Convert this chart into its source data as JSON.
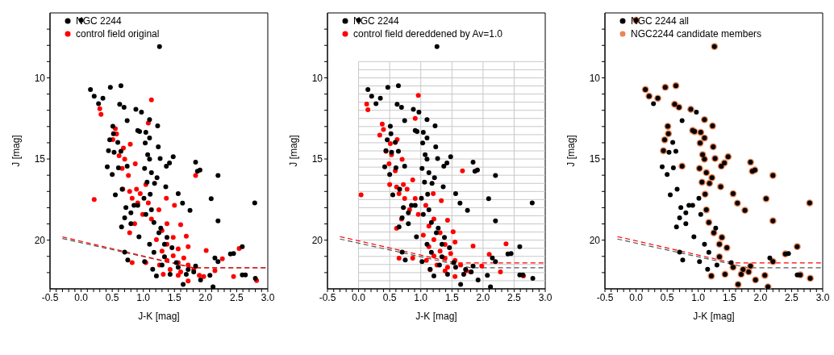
{
  "chart_data": [
    {
      "type": "scatter",
      "xlabel": "J-K [mag]",
      "ylabel": "J [mag]",
      "legend": "top left",
      "marker": "circle",
      "xlim": [
        -0.5,
        3.0
      ],
      "ylim": [
        23,
        6
      ],
      "xticks": [
        -0.5,
        {
          "value": -0.4,
          "label": null
        },
        {
          "value": -0.3,
          "label": null
        },
        {
          "value": -0.2,
          "label": null
        },
        {
          "value": -0.1,
          "label": null
        },
        {
          "value": 0,
          "label": "0.0"
        },
        {
          "value": 0.1,
          "label": null
        },
        {
          "value": 0.2,
          "label": null
        },
        {
          "value": 0.3,
          "label": null
        },
        {
          "value": 0.4,
          "label": null
        },
        0.5,
        {
          "value": 0.6,
          "label": null
        },
        {
          "value": 0.7,
          "label": null
        },
        {
          "value": 0.8,
          "label": null
        },
        {
          "value": 0.9,
          "label": null
        },
        {
          "value": 1,
          "label": "1.0"
        },
        {
          "value": 1.1,
          "label": null
        },
        {
          "value": 1.2,
          "label": null
        },
        {
          "value": 1.3,
          "label": null
        },
        {
          "value": 1.4,
          "label": null
        },
        1.5,
        {
          "value": 1.6,
          "label": null
        },
        {
          "value": 1.7,
          "label": null
        },
        {
          "value": 1.8,
          "label": null
        },
        {
          "value": 1.9,
          "label": null
        },
        {
          "value": 2,
          "label": "2.0"
        },
        {
          "value": 2.1,
          "label": null
        },
        {
          "value": 2.2,
          "label": null
        },
        {
          "value": 2.3,
          "label": null
        },
        {
          "value": 2.4,
          "label": null
        },
        2.5,
        {
          "value": 2.6,
          "label": null
        },
        {
          "value": 2.7,
          "label": null
        },
        {
          "value": 2.8,
          "label": null
        },
        {
          "value": 2.9,
          "label": null
        },
        {
          "value": 3,
          "label": "3.0"
        }
      ],
      "yticks": [
        {
          "value": 7,
          "label": null
        },
        {
          "value": 8,
          "label": null
        },
        {
          "value": 9,
          "label": null
        },
        10,
        {
          "value": 11,
          "label": null
        },
        {
          "value": 12,
          "label": null
        },
        {
          "value": 13,
          "label": null
        },
        {
          "value": 14,
          "label": null
        },
        15,
        {
          "value": 16,
          "label": null
        },
        {
          "value": 17,
          "label": null
        },
        {
          "value": 18,
          "label": null
        },
        {
          "value": 19,
          "label": null
        },
        20,
        {
          "value": 21,
          "label": null
        },
        {
          "value": 22,
          "label": null
        }
      ],
      "series": [
        {
          "name": "NGC 2244",
          "color": "#000000",
          "x": [
            0.0,
            1.26,
            0.15,
            0.21,
            0.28,
            0.35,
            0.47,
            0.64,
            0.62,
            0.69,
            0.88,
            0.97,
            0.74,
            1.1,
            1.23,
            0.51,
            0.52,
            0.91,
            0.94,
            1.04,
            1.1,
            0.46,
            0.59,
            1.03,
            0.44,
            0.53,
            0.64,
            1.24,
            1.07,
            1.1,
            1.27,
            1.48,
            1.37,
            1.42,
            0.42,
            0.5,
            0.6,
            0.74,
            1.13,
            1.22,
            1.18,
            1.84,
            1.87,
            1.91,
            2.2,
            1.36,
            1.56,
            0.66,
            0.55,
            2.09,
            1.63,
            2.79,
            1.75,
            2.2,
            0.65,
            0.7,
            0.8,
            0.91,
            1.01,
            1.11,
            1.04,
            1.17,
            0.8,
            0.93,
            1.28,
            1.38,
            1.1,
            1.17,
            1.46,
            1.34,
            0.7,
            0.75,
            1.02,
            1.15,
            1.21,
            1.56,
            1.69,
            1.84,
            1.64,
            1.92,
            2.12,
            2.2,
            2.15,
            2.07,
            2.4,
            2.45,
            2.59,
            2.59,
            2.64,
            2.8,
            1.81,
            1.72,
            1.53,
            1.3,
            1.43,
            1.34,
            1.25,
            1.13,
            1.06,
            1.02,
            0.85,
            0.72
          ],
          "values": [
            6.45,
            8.07,
            10.72,
            11.13,
            11.59,
            11.26,
            10.58,
            10.48,
            11.63,
            11.81,
            11.94,
            12.12,
            12.63,
            12.58,
            12.96,
            12.99,
            13.44,
            13.24,
            13.31,
            13.36,
            13.71,
            13.82,
            13.98,
            14.02,
            14.49,
            14.59,
            14.53,
            14.25,
            14.73,
            15.01,
            14.97,
            14.86,
            15.44,
            15.24,
            15.48,
            15.95,
            15.54,
            15.44,
            15.84,
            16.15,
            16.5,
            15.2,
            15.75,
            15.68,
            16.01,
            16.71,
            17.14,
            16.86,
            17.21,
            17.45,
            17.72,
            17.71,
            18.16,
            18.81,
            19.19,
            18.63,
            18.31,
            17.85,
            17.42,
            17.17,
            18.41,
            18.91,
            18.98,
            19.8,
            19.26,
            19.83,
            20.25,
            20.75,
            20.47,
            21.03,
            20.74,
            21.22,
            21.32,
            21.79,
            22.21,
            21.67,
            22.1,
            21.6,
            22.73,
            22.45,
            22.88,
            21.32,
            21.1,
            22.17,
            20.85,
            20.82,
            20.4,
            22.14,
            22.14,
            22.35,
            21.95,
            21.81,
            21.39,
            21.53,
            22.1,
            20.25,
            19.55,
            18.13,
            16.43,
            15.58,
            17.85,
            17.99
          ]
        },
        {
          "name": "control field original",
          "color": "#ff0000",
          "x": [
            1.13,
            0.3,
            0.32,
            1.08,
            0.55,
            0.57,
            0.51,
            0.79,
            0.68,
            0.61,
            0.7,
            0.87,
            0.66,
            0.76,
            1.84,
            0.21,
            0.67,
            0.78,
            0.89,
            0.95,
            1.04,
            0.82,
            0.91,
            1.08,
            1.37,
            1.5,
            1.25,
            0.99,
            1.13,
            0.86,
            0.78,
            1.38,
            1.6,
            1.3,
            1.48,
            1.69,
            1.21,
            1.38,
            1.56,
            1.72,
            1.3,
            1.48,
            1.65,
            1.38,
            1.56,
            1.72,
            1.26,
            1.04,
            0.82,
            1.43,
            1.6,
            1.81,
            1.32,
            1.56,
            1.72,
            2.01,
            2.27,
            2.15,
            1.9,
            2.45,
            2.54,
            2.82,
            1.97
          ],
          "values": [
            11.36,
            11.9,
            12.25,
            12.78,
            13.13,
            13.46,
            13.81,
            14.09,
            14.33,
            14.8,
            15.01,
            15.3,
            15.58,
            16.01,
            16.01,
            17.49,
            16.86,
            17.0,
            16.86,
            17.14,
            16.57,
            17.42,
            17.71,
            17.71,
            17.42,
            17.85,
            18.13,
            18.41,
            18.7,
            18.98,
            19.55,
            18.98,
            19.05,
            19.41,
            19.83,
            19.76,
            19.97,
            20.25,
            20.54,
            20.4,
            20.68,
            20.96,
            21.1,
            21.25,
            21.39,
            21.53,
            21.53,
            21.39,
            21.39,
            21.81,
            21.95,
            21.81,
            22.1,
            22.17,
            22.52,
            20.64,
            21.15,
            21.88,
            22.17,
            22.24,
            20.51,
            22.49,
            22.24
          ]
        },
        {
          "type": "line",
          "color": "#ff0000",
          "line_style": "dashed",
          "marker": "none",
          "x": [
            -0.3,
            1.8,
            3.0
          ],
          "values": [
            19.8,
            21.7,
            21.7
          ]
        },
        {
          "type": "line",
          "color": "#555555",
          "line_style": "dashed",
          "marker": "none",
          "x": [
            -0.3,
            1.8,
            3.0
          ],
          "values": [
            19.9,
            21.7,
            21.7
          ]
        }
      ]
    },
    {
      "type": "scatter",
      "xlabel": "J-K [mag]",
      "ylabel": "J [mag]",
      "legend": "top left",
      "marker": "circle",
      "xlim": [
        -0.5,
        3.0
      ],
      "ylim": [
        23,
        6
      ],
      "xticks": [
        -0.5,
        {
          "value": -0.4,
          "label": null
        },
        {
          "value": -0.3,
          "label": null
        },
        {
          "value": -0.2,
          "label": null
        },
        {
          "value": -0.1,
          "label": null
        },
        {
          "value": 0,
          "label": "0.0"
        },
        {
          "value": 0.1,
          "label": null
        },
        {
          "value": 0.2,
          "label": null
        },
        {
          "value": 0.3,
          "label": null
        },
        {
          "value": 0.4,
          "label": null
        },
        0.5,
        {
          "value": 0.6,
          "label": null
        },
        {
          "value": 0.7,
          "label": null
        },
        {
          "value": 0.8,
          "label": null
        },
        {
          "value": 0.9,
          "label": null
        },
        {
          "value": 1,
          "label": "1.0"
        },
        {
          "value": 1.1,
          "label": null
        },
        {
          "value": 1.2,
          "label": null
        },
        {
          "value": 1.3,
          "label": null
        },
        {
          "value": 1.4,
          "label": null
        },
        1.5,
        {
          "value": 1.6,
          "label": null
        },
        {
          "value": 1.7,
          "label": null
        },
        {
          "value": 1.8,
          "label": null
        },
        {
          "value": 1.9,
          "label": null
        },
        {
          "value": 2,
          "label": "2.0"
        },
        {
          "value": 2.1,
          "label": null
        },
        {
          "value": 2.2,
          "label": null
        },
        {
          "value": 2.3,
          "label": null
        },
        {
          "value": 2.4,
          "label": null
        },
        2.5,
        {
          "value": 2.6,
          "label": null
        },
        {
          "value": 2.7,
          "label": null
        },
        {
          "value": 2.8,
          "label": null
        },
        {
          "value": 2.9,
          "label": null
        },
        {
          "value": 3,
          "label": "3.0"
        }
      ],
      "yticks": [
        {
          "value": 7,
          "label": null
        },
        {
          "value": 8,
          "label": null
        },
        {
          "value": 9,
          "label": null
        },
        10,
        {
          "value": 11,
          "label": null
        },
        {
          "value": 12,
          "label": null
        },
        {
          "value": 13,
          "label": null
        },
        {
          "value": 14,
          "label": null
        },
        15,
        {
          "value": 16,
          "label": null
        },
        {
          "value": 17,
          "label": null
        },
        {
          "value": 18,
          "label": null
        },
        {
          "value": 19,
          "label": null
        },
        20,
        {
          "value": 21,
          "label": null
        },
        {
          "value": 22,
          "label": null
        }
      ],
      "ref_lines": [
        {
          "axis": "x",
          "value": 0,
          "color": "#c8c8c8"
        },
        {
          "axis": "x",
          "value": 0.5,
          "color": "#c8c8c8"
        },
        {
          "axis": "x",
          "value": 1.0,
          "color": "#c8c8c8"
        },
        {
          "axis": "x",
          "value": 1.5,
          "color": "#c8c8c8"
        },
        {
          "axis": "x",
          "value": 2.0,
          "color": "#c8c8c8"
        },
        {
          "axis": "x",
          "value": 2.5,
          "color": "#c8c8c8"
        },
        {
          "axis": "y",
          "value": 9,
          "color": "#c8c8c8"
        },
        {
          "axis": "y",
          "value": 9.5,
          "color": "#c8c8c8"
        },
        {
          "axis": "y",
          "value": 10,
          "color": "#c8c8c8"
        },
        {
          "axis": "y",
          "value": 10.5,
          "color": "#c8c8c8"
        },
        {
          "axis": "y",
          "value": 11,
          "color": "#c8c8c8"
        },
        {
          "axis": "y",
          "value": 11.5,
          "color": "#c8c8c8"
        },
        {
          "axis": "y",
          "value": 12,
          "color": "#c8c8c8"
        },
        {
          "axis": "y",
          "value": 12.5,
          "color": "#c8c8c8"
        },
        {
          "axis": "y",
          "value": 13,
          "color": "#c8c8c8"
        },
        {
          "axis": "y",
          "value": 13.5,
          "color": "#c8c8c8"
        },
        {
          "axis": "y",
          "value": 14,
          "color": "#c8c8c8"
        },
        {
          "axis": "y",
          "value": 14.5,
          "color": "#c8c8c8"
        },
        {
          "axis": "y",
          "value": 15,
          "color": "#c8c8c8"
        },
        {
          "axis": "y",
          "value": 15.5,
          "color": "#c8c8c8"
        },
        {
          "axis": "y",
          "value": 16,
          "color": "#c8c8c8"
        },
        {
          "axis": "y",
          "value": 16.5,
          "color": "#c8c8c8"
        },
        {
          "axis": "y",
          "value": 17,
          "color": "#c8c8c8"
        },
        {
          "axis": "y",
          "value": 17.5,
          "color": "#c8c8c8"
        },
        {
          "axis": "y",
          "value": 18,
          "color": "#c8c8c8"
        },
        {
          "axis": "y",
          "value": 18.5,
          "color": "#c8c8c8"
        },
        {
          "axis": "y",
          "value": 19,
          "color": "#c8c8c8"
        },
        {
          "axis": "y",
          "value": 19.5,
          "color": "#c8c8c8"
        },
        {
          "axis": "y",
          "value": 20,
          "color": "#c8c8c8"
        },
        {
          "axis": "y",
          "value": 20.5,
          "color": "#c8c8c8"
        },
        {
          "axis": "y",
          "value": 21,
          "color": "#c8c8c8"
        },
        {
          "axis": "y",
          "value": 21.5,
          "color": "#c8c8c8"
        },
        {
          "axis": "y",
          "value": 22,
          "color": "#c8c8c8"
        },
        {
          "axis": "y",
          "value": 22.5,
          "color": "#c8c8c8"
        }
      ],
      "series": [
        {
          "name": "NGC 2244",
          "color": "#000000",
          "x": [
            0.0,
            1.26,
            0.15,
            0.21,
            0.28,
            0.35,
            0.47,
            0.64,
            0.62,
            0.69,
            0.88,
            0.97,
            0.74,
            1.1,
            1.23,
            0.51,
            0.52,
            0.91,
            0.94,
            1.04,
            1.1,
            0.46,
            0.59,
            1.03,
            0.44,
            0.53,
            0.64,
            1.24,
            1.07,
            1.1,
            1.27,
            1.48,
            1.37,
            1.42,
            0.42,
            0.5,
            0.6,
            0.74,
            1.13,
            1.22,
            1.18,
            1.84,
            1.87,
            1.91,
            2.2,
            1.36,
            1.56,
            0.66,
            0.55,
            2.09,
            1.63,
            2.79,
            1.75,
            2.2,
            0.65,
            0.7,
            0.8,
            0.91,
            1.01,
            1.11,
            1.04,
            1.17,
            0.8,
            0.93,
            1.28,
            1.38,
            1.1,
            1.17,
            1.46,
            1.34,
            0.7,
            0.75,
            1.02,
            1.15,
            1.21,
            1.56,
            1.69,
            1.84,
            1.64,
            1.92,
            2.12,
            2.2,
            2.15,
            2.07,
            2.4,
            2.45,
            2.59,
            2.59,
            2.64,
            2.8,
            1.81,
            1.72,
            1.53,
            1.3,
            1.43,
            1.34,
            1.25,
            1.13,
            1.06,
            1.02,
            0.85,
            0.72
          ],
          "values": [
            6.45,
            8.07,
            10.72,
            11.13,
            11.59,
            11.26,
            10.58,
            10.48,
            11.63,
            11.81,
            11.94,
            12.12,
            12.63,
            12.58,
            12.96,
            12.99,
            13.44,
            13.24,
            13.31,
            13.36,
            13.71,
            13.82,
            13.98,
            14.02,
            14.49,
            14.59,
            14.53,
            14.25,
            14.73,
            15.01,
            14.97,
            14.86,
            15.44,
            15.24,
            15.48,
            15.95,
            15.54,
            15.44,
            15.84,
            16.15,
            16.5,
            15.2,
            15.75,
            15.68,
            16.01,
            16.71,
            17.14,
            16.86,
            17.21,
            17.45,
            17.72,
            17.71,
            18.16,
            18.81,
            19.19,
            18.63,
            18.31,
            17.85,
            17.42,
            17.17,
            18.41,
            18.91,
            18.98,
            19.8,
            19.26,
            19.83,
            20.25,
            20.75,
            20.47,
            21.03,
            20.74,
            21.22,
            21.32,
            21.79,
            22.21,
            21.67,
            22.1,
            21.6,
            22.73,
            22.45,
            22.88,
            21.32,
            21.1,
            22.17,
            20.85,
            20.82,
            20.4,
            22.14,
            22.14,
            22.35,
            21.95,
            21.81,
            21.39,
            21.53,
            22.1,
            20.25,
            19.55,
            18.13,
            16.43,
            15.58,
            17.85,
            17.99
          ]
        },
        {
          "name": "control field dereddened by Av=1.0",
          "color": "#ff0000",
          "x": [
            0.96,
            0.13,
            0.15,
            0.91,
            0.38,
            0.4,
            0.34,
            0.62,
            0.51,
            0.44,
            0.53,
            0.7,
            0.49,
            0.59,
            1.67,
            0.04,
            0.5,
            0.61,
            0.72,
            0.78,
            0.87,
            0.65,
            0.74,
            0.91,
            1.2,
            1.33,
            1.08,
            0.82,
            0.96,
            0.69,
            0.61,
            1.21,
            1.43,
            1.13,
            1.31,
            1.52,
            1.04,
            1.21,
            1.39,
            1.55,
            1.13,
            1.31,
            1.48,
            1.21,
            1.39,
            1.55,
            1.09,
            0.87,
            0.65,
            1.26,
            1.43,
            1.64,
            1.15,
            1.39,
            1.55,
            1.84,
            2.1,
            1.98,
            1.73,
            2.28,
            2.37,
            2.65,
            1.8
          ],
          "values": [
            11.08,
            11.62,
            11.97,
            12.5,
            12.85,
            13.18,
            13.53,
            13.81,
            14.05,
            14.52,
            14.73,
            15.02,
            15.3,
            15.73,
            15.73,
            17.21,
            16.58,
            16.72,
            16.58,
            16.86,
            16.29,
            17.14,
            17.43,
            17.43,
            17.14,
            17.57,
            17.85,
            18.13,
            18.42,
            18.7,
            19.27,
            18.7,
            18.77,
            19.13,
            19.55,
            19.48,
            19.69,
            19.97,
            20.26,
            20.12,
            20.4,
            20.68,
            20.82,
            20.97,
            21.11,
            21.25,
            21.25,
            21.11,
            21.11,
            21.53,
            21.67,
            21.53,
            21.82,
            21.89,
            22.24,
            20.36,
            20.87,
            21.6,
            21.89,
            21.96,
            20.23,
            22.21,
            21.96
          ]
        },
        {
          "type": "line",
          "color": "#ff0000",
          "line_style": "dashed",
          "marker": "none",
          "x": [
            -0.3,
            1.55,
            3.0
          ],
          "values": [
            19.78,
            21.4,
            21.4
          ]
        },
        {
          "type": "line",
          "color": "#555555",
          "line_style": "dashed",
          "marker": "none",
          "x": [
            -0.3,
            1.8,
            3.0
          ],
          "values": [
            19.93,
            21.7,
            21.7
          ]
        }
      ]
    },
    {
      "type": "scatter",
      "xlabel": "J-K [mag]",
      "ylabel": "J [mag]",
      "legend": "top left",
      "marker": "circle",
      "xlim": [
        -0.5,
        3.0
      ],
      "ylim": [
        23,
        6
      ],
      "xticks": [
        -0.5,
        {
          "value": -0.4,
          "label": null
        },
        {
          "value": -0.3,
          "label": null
        },
        {
          "value": -0.2,
          "label": null
        },
        {
          "value": -0.1,
          "label": null
        },
        {
          "value": 0,
          "label": "0.0"
        },
        {
          "value": 0.1,
          "label": null
        },
        {
          "value": 0.2,
          "label": null
        },
        {
          "value": 0.3,
          "label": null
        },
        {
          "value": 0.4,
          "label": null
        },
        0.5,
        {
          "value": 0.6,
          "label": null
        },
        {
          "value": 0.7,
          "label": null
        },
        {
          "value": 0.8,
          "label": null
        },
        {
          "value": 0.9,
          "label": null
        },
        {
          "value": 1,
          "label": "1.0"
        },
        {
          "value": 1.1,
          "label": null
        },
        {
          "value": 1.2,
          "label": null
        },
        {
          "value": 1.3,
          "label": null
        },
        {
          "value": 1.4,
          "label": null
        },
        1.5,
        {
          "value": 1.6,
          "label": null
        },
        {
          "value": 1.7,
          "label": null
        },
        {
          "value": 1.8,
          "label": null
        },
        {
          "value": 1.9,
          "label": null
        },
        {
          "value": 2,
          "label": "2.0"
        },
        {
          "value": 2.1,
          "label": null
        },
        {
          "value": 2.2,
          "label": null
        },
        {
          "value": 2.3,
          "label": null
        },
        {
          "value": 2.4,
          "label": null
        },
        2.5,
        {
          "value": 2.6,
          "label": null
        },
        {
          "value": 2.7,
          "label": null
        },
        {
          "value": 2.8,
          "label": null
        },
        {
          "value": 2.9,
          "label": null
        },
        {
          "value": 3,
          "label": "3.0"
        }
      ],
      "yticks": [
        {
          "value": 7,
          "label": null
        },
        {
          "value": 8,
          "label": null
        },
        {
          "value": 9,
          "label": null
        },
        10,
        {
          "value": 11,
          "label": null
        },
        {
          "value": 12,
          "label": null
        },
        {
          "value": 13,
          "label": null
        },
        {
          "value": 14,
          "label": null
        },
        15,
        {
          "value": 16,
          "label": null
        },
        {
          "value": 17,
          "label": null
        },
        {
          "value": 18,
          "label": null
        },
        {
          "value": 19,
          "label": null
        },
        20,
        {
          "value": 21,
          "label": null
        },
        {
          "value": 22,
          "label": null
        }
      ],
      "series": [
        {
          "name": "NGC 2244 all",
          "color": "#000000",
          "x": [
            0.0,
            1.26,
            0.15,
            0.21,
            0.28,
            0.35,
            0.47,
            0.64,
            0.62,
            0.69,
            0.88,
            0.97,
            0.74,
            1.1,
            1.23,
            0.51,
            0.52,
            0.91,
            0.94,
            1.04,
            1.1,
            0.46,
            0.59,
            1.03,
            0.44,
            0.53,
            0.64,
            1.24,
            1.07,
            1.1,
            1.27,
            1.48,
            1.37,
            1.42,
            0.42,
            0.5,
            0.6,
            0.74,
            1.13,
            1.22,
            1.18,
            1.84,
            1.87,
            1.91,
            2.2,
            1.36,
            1.56,
            0.66,
            0.55,
            2.09,
            1.63,
            2.79,
            1.75,
            2.2,
            0.65,
            0.7,
            0.8,
            0.91,
            1.01,
            1.11,
            1.04,
            1.17,
            0.8,
            0.93,
            1.28,
            1.38,
            1.1,
            1.17,
            1.46,
            1.34,
            0.7,
            0.75,
            1.02,
            1.15,
            1.21,
            1.56,
            1.69,
            1.84,
            1.64,
            1.92,
            2.12,
            2.2,
            2.15,
            2.07,
            2.4,
            2.45,
            2.59,
            2.59,
            2.64,
            2.8,
            1.81,
            1.72,
            1.53,
            1.3,
            1.43,
            1.34,
            1.25,
            1.13,
            1.06,
            1.02,
            0.85,
            0.72
          ],
          "values": [
            6.45,
            8.07,
            10.72,
            11.13,
            11.59,
            11.26,
            10.58,
            10.48,
            11.63,
            11.81,
            11.94,
            12.12,
            12.63,
            12.58,
            12.96,
            12.99,
            13.44,
            13.24,
            13.31,
            13.36,
            13.71,
            13.82,
            13.98,
            14.02,
            14.49,
            14.59,
            14.53,
            14.25,
            14.73,
            15.01,
            14.97,
            14.86,
            15.44,
            15.24,
            15.48,
            15.95,
            15.54,
            15.44,
            15.84,
            16.15,
            16.5,
            15.2,
            15.75,
            15.68,
            16.01,
            16.71,
            17.14,
            16.86,
            17.21,
            17.45,
            17.72,
            17.71,
            18.16,
            18.81,
            19.19,
            18.63,
            18.31,
            17.85,
            17.42,
            17.17,
            18.41,
            18.91,
            18.98,
            19.8,
            19.26,
            19.83,
            20.25,
            20.75,
            20.47,
            21.03,
            20.74,
            21.22,
            21.32,
            21.79,
            22.21,
            21.67,
            22.1,
            21.6,
            22.73,
            22.45,
            22.88,
            21.32,
            21.1,
            22.17,
            20.85,
            20.82,
            20.4,
            22.14,
            22.14,
            22.35,
            21.95,
            21.81,
            21.39,
            21.53,
            22.1,
            20.25,
            19.55,
            18.13,
            16.43,
            15.58,
            17.85,
            17.99
          ]
        },
        {
          "name": "NGC2244 candidate members",
          "color": "#e8875a",
          "x": [
            0.0,
            1.26,
            0.15,
            0.21,
            0.35,
            0.47,
            0.64,
            0.62,
            0.69,
            0.88,
            1.1,
            1.23,
            0.51,
            0.52,
            0.91,
            0.94,
            1.04,
            1.1,
            0.46,
            1.03,
            0.44,
            1.24,
            1.07,
            1.1,
            1.27,
            1.48,
            1.37,
            1.42,
            0.74,
            1.13,
            1.22,
            1.18,
            1.84,
            1.87,
            1.91,
            2.2,
            1.36,
            1.56,
            2.09,
            1.63,
            2.79,
            1.75,
            2.2,
            1.11,
            1.06,
            1.02,
            1.34,
            1.38,
            1.46,
            1.34,
            1.56,
            1.69,
            1.84,
            1.64,
            1.92,
            2.12,
            2.2,
            2.07,
            2.4,
            2.59,
            2.64,
            2.8,
            1.81,
            1.72,
            1.43,
            1.25,
            1.13,
            1.17,
            1.21
          ],
          "values": [
            6.45,
            8.07,
            10.72,
            11.13,
            11.26,
            10.58,
            10.48,
            11.63,
            11.81,
            11.94,
            12.58,
            12.96,
            12.99,
            13.44,
            13.24,
            13.31,
            13.36,
            13.71,
            13.82,
            14.02,
            14.49,
            14.25,
            14.73,
            15.01,
            14.97,
            14.86,
            15.44,
            15.24,
            15.44,
            15.84,
            16.15,
            16.5,
            15.2,
            15.75,
            15.68,
            16.01,
            16.71,
            17.14,
            17.45,
            17.72,
            17.71,
            18.16,
            18.81,
            17.17,
            16.43,
            15.58,
            20.25,
            19.83,
            20.47,
            21.03,
            21.67,
            22.1,
            21.6,
            22.73,
            22.45,
            22.88,
            21.32,
            22.17,
            20.85,
            20.4,
            22.14,
            22.35,
            21.95,
            21.81,
            22.1,
            19.55,
            18.13,
            18.91,
            22.21
          ]
        },
        {
          "type": "line",
          "color": "#ff0000",
          "line_style": "dashed",
          "marker": "none",
          "x": [
            -0.3,
            1.55,
            3.0
          ],
          "values": [
            19.78,
            21.4,
            21.4
          ]
        },
        {
          "type": "line",
          "color": "#555555",
          "line_style": "dashed",
          "marker": "none",
          "x": [
            -0.3,
            1.8,
            3.0
          ],
          "values": [
            19.93,
            21.7,
            21.7
          ]
        }
      ]
    }
  ]
}
